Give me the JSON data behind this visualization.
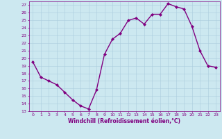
{
  "x": [
    0,
    1,
    2,
    3,
    4,
    5,
    6,
    7,
    8,
    9,
    10,
    11,
    12,
    13,
    14,
    15,
    16,
    17,
    18,
    19,
    20,
    21,
    22,
    23
  ],
  "y": [
    19.5,
    17.5,
    17.0,
    16.5,
    15.5,
    14.5,
    13.7,
    13.3,
    15.8,
    20.5,
    22.5,
    23.3,
    25.0,
    25.3,
    24.5,
    25.8,
    25.8,
    27.2,
    26.8,
    26.5,
    24.2,
    21.0,
    19.0,
    18.8
  ],
  "line_color": "#800080",
  "marker": "D",
  "marker_size": 2.0,
  "bg_color": "#cce8f0",
  "grid_color": "#aaccdd",
  "xlabel": "Windchill (Refroidissement éolien,°C)",
  "ylabel": "",
  "ylim": [
    13,
    27.5
  ],
  "xlim": [
    -0.5,
    23.5
  ],
  "yticks": [
    13,
    14,
    15,
    16,
    17,
    18,
    19,
    20,
    21,
    22,
    23,
    24,
    25,
    26,
    27
  ],
  "xticks": [
    0,
    1,
    2,
    3,
    4,
    5,
    6,
    7,
    8,
    9,
    10,
    11,
    12,
    13,
    14,
    15,
    16,
    17,
    18,
    19,
    20,
    21,
    22,
    23
  ],
  "tick_color": "#800080",
  "tick_fontsize": 4.5,
  "xlabel_fontsize": 5.5,
  "line_width": 1.0
}
